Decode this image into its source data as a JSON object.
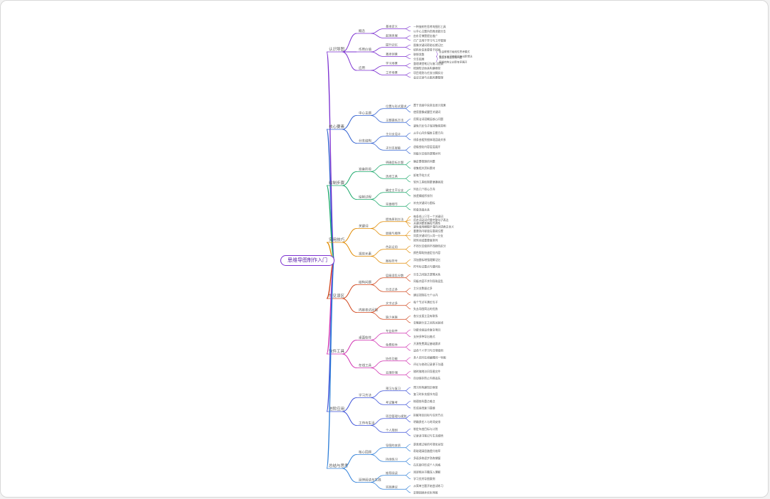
{
  "title": "思维导图制作入门",
  "branches": [
    {
      "label": "认识导图",
      "color": "#7b2fd0",
      "children": [
        {
          "label": "概念",
          "children": [
            {
              "label": "基本定义",
              "children": [
                "一种放射性思考的图形工具",
                "以中心主题向四周发散分支"
              ]
            },
            {
              "label": "起源发展",
              "children": [
                "由东尼博赞提出推广",
                "已广泛用于学习与工作管理"
              ]
            }
          ]
        },
        {
          "label": "作用价值",
          "children": [
            {
              "label": "提升记忆",
              "children": [
                "图像关键词帮助长期记忆",
                "结构化信息更易于回顾"
              ]
            },
            {
              "label": "激发创意",
              "children": [
                "联想发散",
                "分支延展"
              ],
              "grand": [
                [
                  "自由联想打破线性思考模式",
                  "鼓励多角度探索问题"
                ],
                [
                  "每个分支可继续延伸出新想法",
                  "层级结构让创意有序展开"
                ]
              ]
            }
          ]
        },
        {
          "label": "应用",
          "children": [
            {
              "label": "学习场景",
              "children": [
                "整理课堂笔记与复习提纲",
                "梳理知识体系构建框架"
              ]
            },
            {
              "label": "工作场景",
              "children": [
                "项目规划与任务分解拆分",
                "会议记录与头脑风暴整理"
              ]
            }
          ]
        }
      ]
    },
    {
      "label": "核心要素",
      "color": "#2f5fd0",
      "children": [
        {
          "label": "中心主题",
          "children": [
            {
              "label": "位置与形式要求",
              "children": [
                "置于页面中央突出显示效果",
                "使用图像或醒目关键词"
              ]
            },
            {
              "label": "主题提炼方法",
              "children": [
                "用简洁词语概括核心问题",
                "避免冗长句子保持聚焦简明"
              ]
            }
          ]
        },
        {
          "label": "分支结构",
          "children": [
            {
              "label": "主分支设计",
              "children": [
                "从中心向外辐射主要方向",
                "线条由粗到细体现层级关系"
              ]
            },
            {
              "label": "子分支层级",
              "children": [
                "逐级细化内容层层展开",
                "同级分支保持逻辑并列"
              ]
            }
          ]
        }
      ]
    },
    {
      "label": "绘制步骤",
      "color": "#1aa86a",
      "children": [
        {
          "label": "准备阶段",
          "children": [
            {
              "label": "明确目标主题",
              "children": [
                "确定要梳理的问题",
                "收集相关资料素材"
              ]
            },
            {
              "label": "选择工具",
              "children": [
                "纸笔手绘方式",
                "软件工具绘制更便捷高效"
              ]
            }
          ]
        },
        {
          "label": "绘制过程",
          "children": [
            {
              "label": "确定主干分支",
              "children": [
                "列出几个核心方向",
                "按逻辑顺序排列"
              ]
            },
            {
              "label": "完善细节",
              "children": [
                "补充关键词与图标",
                "检查连接关系"
              ]
            }
          ]
        }
      ]
    },
    {
      "label": "实用技巧",
      "color": "#e08a00",
      "children": [
        {
          "label": "关键词",
          "children": [
            {
              "label": "提炼原则方法",
              "children": [
                "每条线上只写一个关键词",
                "用名词动词代替完整句子表达",
                "关键词要准确有代表性",
                "避免使用模糊不清的词语表达含义"
              ]
            },
            {
              "label": "层级与顺序",
              "children": [
                "重要的内容放在靠前位置",
                "同类关键词归入同一分支",
                "按时间或重要度排列"
              ]
            }
          ]
        },
        {
          "label": "视觉元素",
          "children": [
            {
              "label": "色彩运用",
              "children": [
                "不同分支使用不同颜色区分",
                "颜色帮助快速定位内容"
              ]
            },
            {
              "label": "图标符号",
              "children": [
                "添加图标增强理解记忆",
                "符号标记重点与疑问处"
              ]
            }
          ]
        }
      ]
    },
    {
      "label": "常见误区",
      "color": "#d0451b",
      "children": [
        {
          "label": "结构问题",
          "children": [
            {
              "label": "层级混乱分散",
              "children": [
                "分支之间缺乏逻辑关系",
                "同级内容不并列导致混乱"
              ]
            },
            {
              "label": "分支过多",
              "children": [
                "主分支数量过多",
                "建议控制在七个以内"
              ]
            }
          ]
        },
        {
          "label": "内容表达问题",
          "children": [
            {
              "label": "文字过多",
              "children": [
                "每个节点写满长句子",
                "失去导图简洁的优势"
              ]
            },
            {
              "label": "缺少关联",
              "children": [
                "各分支孤立没有联系",
                "忽略跨分支之间的关联线"
              ]
            }
          ]
        }
      ]
    },
    {
      "label": "软件工具",
      "color": "#d02fb0",
      "children": [
        {
          "label": "桌面软件",
          "children": [
            {
              "label": "专业软件",
              "children": [
                "功能全面适合复杂项目",
                "支持多种导出格式"
              ]
            },
            {
              "label": "免费软件",
              "children": [
                "开源免费满足基础需求",
                "适合个人学习与日常使用"
              ]
            }
          ]
        },
        {
          "label": "在线工具",
          "children": [
            {
              "label": "协作功能",
              "children": [
                "多人实时在线编辑同一导图",
                "评论与修改记录便于沟通"
              ]
            },
            {
              "label": "云端存储",
              "children": [
                "随时随地访问导图文件",
                "自动保存防止内容丢失"
              ]
            }
          ]
        }
      ]
    },
    {
      "label": "进阶应用",
      "color": "#3a4fd8",
      "children": [
        {
          "label": "学习方法",
          "children": [
            {
              "label": "预习与复习",
              "children": [
                "预习时构建知识框架",
                "复习时补充细节内容"
              ]
            },
            {
              "label": "考试备考",
              "children": [
                "梳理各科重点难点",
                "形成系统复习提纲"
              ]
            }
          ]
        },
        {
          "label": "工作与生活",
          "children": [
            {
              "label": "项目管理与规划",
              "children": [
                "拆解项目目标与任务节点",
                "明确责任人与时间安排"
              ]
            },
            {
              "label": "个人规划",
              "children": [
                "制定年度目标与计划",
                "记录读书笔记与生活感悟"
              ]
            }
          ]
        }
      ]
    },
    {
      "label": "总结与思考",
      "color": "#2f7fd8",
      "children": [
        {
          "label": "核心回顾",
          "children": [
            {
              "label": "导图的本质",
              "children": [
                "是思维过程的可视化呈现",
                "帮助理清思路提升效率"
              ]
            },
            {
              "label": "持续练习",
              "children": [
                "多画多练逐步熟练掌握",
                "在实践中形成个人风格"
              ]
            }
          ]
        },
        {
          "label": "延伸阅读与实践",
          "children": [
            {
              "label": "推荐阅读",
              "children": [
                "阅读相关书籍深入理解",
                "学习优秀导图案例"
              ]
            },
            {
              "label": "实践建议",
              "children": [
                "从简单主题开始尝试练习",
                "定期回顾并优化导图"
              ]
            }
          ]
        }
      ]
    }
  ]
}
